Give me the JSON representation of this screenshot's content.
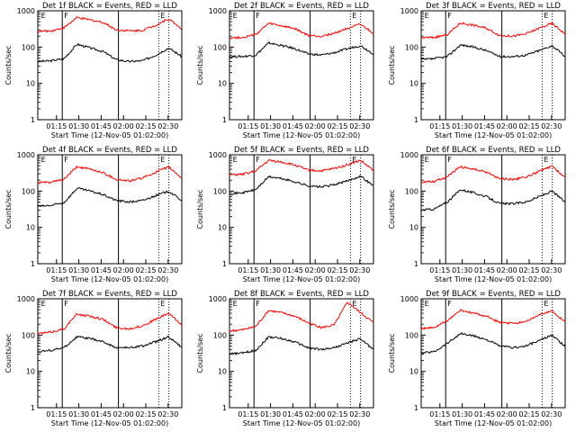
{
  "chart_data": [
    {
      "type": "line",
      "title": "Det 1f BLACK = Events, RED = LLD",
      "xlabel": "Start Time (12-Nov-05 01:02:00)",
      "ylabel": "Counts/sec",
      "ylim": [
        1,
        1000
      ],
      "yscale": "log",
      "ytick_labels": [
        "1",
        "10",
        "100",
        "1000"
      ],
      "xtick_labels": [
        "01:15",
        "01:30",
        "01:45",
        "02:00",
        "02:15",
        "02:30"
      ],
      "marker_letters": [
        "E",
        "F",
        "E"
      ],
      "series": [
        {
          "color": "#000000",
          "values": [
            40,
            42,
            48,
            120,
            95,
            75,
            45,
            40,
            42,
            60,
            95,
            55
          ]
        },
        {
          "color": "#ff0000",
          "values": [
            270,
            280,
            340,
            650,
            560,
            480,
            300,
            280,
            290,
            400,
            600,
            320
          ]
        }
      ]
    },
    {
      "type": "line",
      "title": "Det 2f BLACK = Events, RED = LLD",
      "xlabel": "Start Time (12-Nov-05 01:02:00)",
      "ylabel": "Counts/sec",
      "ylim": [
        1,
        1000
      ],
      "yscale": "log",
      "ytick_labels": [
        "1",
        "10",
        "100",
        "1000"
      ],
      "xtick_labels": [
        "01:15",
        "01:30",
        "01:45",
        "02:00",
        "02:15",
        "02:30"
      ],
      "marker_letters": [
        "E",
        "F",
        "E"
      ],
      "series": [
        {
          "color": "#000000",
          "values": [
            55,
            55,
            60,
            130,
            110,
            90,
            65,
            60,
            70,
            90,
            110,
            65
          ]
        },
        {
          "color": "#ff0000",
          "values": [
            180,
            185,
            220,
            450,
            380,
            320,
            210,
            200,
            240,
            330,
            420,
            240
          ]
        }
      ]
    },
    {
      "type": "line",
      "title": "Det 3f BLACK = Events, RED = LLD",
      "xlabel": "Start Time (12-Nov-05 01:02:00)",
      "ylabel": "Counts/sec",
      "ylim": [
        1,
        1000
      ],
      "yscale": "log",
      "ytick_labels": [
        "1",
        "10",
        "100",
        "1000"
      ],
      "xtick_labels": [
        "01:15",
        "01:30",
        "01:45",
        "02:00",
        "02:15",
        "02:30"
      ],
      "marker_letters": [
        "E",
        "F",
        "E"
      ],
      "series": [
        {
          "color": "#000000",
          "values": [
            45,
            48,
            55,
            115,
            100,
            80,
            55,
            55,
            60,
            80,
            110,
            55
          ]
        },
        {
          "color": "#ff0000",
          "values": [
            180,
            185,
            220,
            460,
            400,
            330,
            210,
            200,
            230,
            330,
            450,
            230
          ]
        }
      ]
    },
    {
      "type": "line",
      "title": "Det 4f BLACK = Events, RED = LLD",
      "xlabel": "Start Time (12-Nov-05 01:02:00)",
      "ylabel": "Counts/sec",
      "ylim": [
        1,
        1000
      ],
      "yscale": "log",
      "ytick_labels": [
        "1",
        "10",
        "100",
        "1000"
      ],
      "xtick_labels": [
        "01:15",
        "01:30",
        "01:45",
        "02:00",
        "02:15",
        "02:30"
      ],
      "marker_letters": [
        "E",
        "F",
        "E"
      ],
      "series": [
        {
          "color": "#000000",
          "values": [
            38,
            40,
            48,
            120,
            100,
            80,
            55,
            50,
            55,
            75,
            100,
            55
          ]
        },
        {
          "color": "#ff0000",
          "values": [
            170,
            175,
            210,
            470,
            400,
            320,
            210,
            190,
            230,
            330,
            460,
            230
          ]
        }
      ]
    },
    {
      "type": "line",
      "title": "Det 5f BLACK = Events, RED = LLD",
      "xlabel": "Start Time (12-Nov-05 01:02:00)",
      "ylabel": "Counts/sec",
      "ylim": [
        1,
        1000
      ],
      "yscale": "log",
      "ytick_labels": [
        "1",
        "10",
        "100",
        "1000"
      ],
      "xtick_labels": [
        "01:15",
        "01:30",
        "01:45",
        "02:00",
        "02:15",
        "02:30"
      ],
      "marker_letters": [
        "E",
        "F",
        "E"
      ],
      "series": [
        {
          "color": "#000000",
          "values": [
            85,
            90,
            110,
            250,
            220,
            180,
            140,
            130,
            150,
            190,
            260,
            140
          ]
        },
        {
          "color": "#ff0000",
          "values": [
            280,
            290,
            360,
            700,
            630,
            520,
            380,
            360,
            420,
            530,
            700,
            370
          ]
        }
      ]
    },
    {
      "type": "line",
      "title": "Det 6f BLACK = Events, RED = LLD",
      "xlabel": "Start Time (12-Nov-05 01:02:00)",
      "ylabel": "Counts/sec",
      "ylim": [
        1,
        1000
      ],
      "yscale": "log",
      "ytick_labels": [
        "1",
        "10",
        "100",
        "1000"
      ],
      "xtick_labels": [
        "01:15",
        "01:30",
        "01:45",
        "02:00",
        "02:15",
        "02:30"
      ],
      "marker_letters": [
        "E",
        "F",
        "E"
      ],
      "series": [
        {
          "color": "#000000",
          "values": [
            30,
            32,
            50,
            110,
            90,
            70,
            45,
            45,
            50,
            70,
            100,
            50
          ]
        },
        {
          "color": "#ff0000",
          "values": [
            180,
            185,
            250,
            470,
            400,
            330,
            220,
            210,
            240,
            350,
            480,
            240
          ]
        }
      ]
    },
    {
      "type": "line",
      "title": "Det 7f BLACK = Events, RED = LLD",
      "xlabel": "Start Time (12-Nov-05 01:02:00)",
      "ylabel": "Counts/sec",
      "ylim": [
        1,
        1000
      ],
      "yscale": "log",
      "ytick_labels": [
        "1",
        "10",
        "100",
        "1000"
      ],
      "xtick_labels": [
        "01:15",
        "01:30",
        "01:45",
        "02:00",
        "02:15",
        "02:30"
      ],
      "marker_letters": [
        "E",
        "F",
        "E"
      ],
      "series": [
        {
          "color": "#000000",
          "values": [
            35,
            38,
            45,
            90,
            80,
            65,
            45,
            45,
            50,
            65,
            90,
            45
          ]
        },
        {
          "color": "#ff0000",
          "values": [
            110,
            120,
            150,
            380,
            330,
            270,
            160,
            150,
            180,
            270,
            400,
            190
          ]
        }
      ]
    },
    {
      "type": "line",
      "title": "Det 8f BLACK = Events, RED = LLD",
      "xlabel": "Start Time (12-Nov-05 01:02:00)",
      "ylabel": "Counts/sec",
      "ylim": [
        1,
        1000
      ],
      "yscale": "log",
      "ytick_labels": [
        "1",
        "10",
        "100",
        "1000"
      ],
      "xtick_labels": [
        "01:15",
        "01:30",
        "01:45",
        "02:00",
        "02:15",
        "02:30"
      ],
      "marker_letters": [
        "E",
        "F",
        "E"
      ],
      "series": [
        {
          "color": "#000000",
          "values": [
            30,
            32,
            38,
            90,
            80,
            65,
            45,
            40,
            45,
            60,
            80,
            40
          ]
        },
        {
          "color": "#ff0000",
          "values": [
            130,
            140,
            170,
            480,
            410,
            330,
            220,
            160,
            190,
            800,
            420,
            220
          ]
        }
      ]
    },
    {
      "type": "line",
      "title": "Det 9f BLACK = Events, RED = LLD",
      "xlabel": "Start Time (12-Nov-05 01:02:00)",
      "ylabel": "Counts/sec",
      "ylim": [
        1,
        1000
      ],
      "yscale": "log",
      "ytick_labels": [
        "1",
        "10",
        "100",
        "1000"
      ],
      "xtick_labels": [
        "01:15",
        "01:30",
        "01:45",
        "02:00",
        "02:15",
        "02:30"
      ],
      "marker_letters": [
        "E",
        "F",
        "E"
      ],
      "series": [
        {
          "color": "#000000",
          "values": [
            32,
            35,
            60,
            110,
            95,
            75,
            50,
            45,
            50,
            70,
            100,
            48
          ]
        },
        {
          "color": "#ff0000",
          "values": [
            150,
            160,
            250,
            480,
            400,
            330,
            220,
            210,
            240,
            350,
            470,
            230
          ]
        }
      ]
    }
  ]
}
